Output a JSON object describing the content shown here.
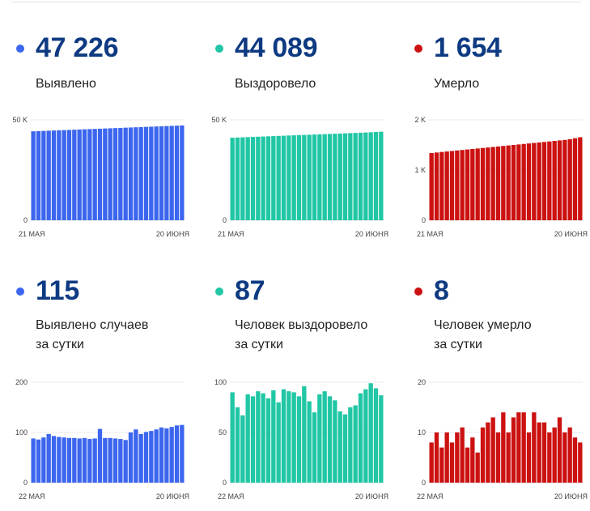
{
  "colors": {
    "blue": "#3c66ee",
    "green": "#21c7a5",
    "red": "#cc1111",
    "number": "#0e3a82"
  },
  "cards": [
    {
      "number": "47 226",
      "label_line1": "Выявлено",
      "label_line2": "",
      "color": "blue",
      "chart_data": {
        "type": "bar",
        "ylim": [
          0,
          50000
        ],
        "yticks": [
          "0",
          "50 K"
        ],
        "ytick_values": [
          0,
          50000
        ],
        "x_start_label": "21 МАЯ",
        "x_end_label": "20 ИЮНЯ",
        "values": [
          44300,
          44400,
          44500,
          44600,
          44700,
          44800,
          44900,
          45000,
          45100,
          45200,
          45300,
          45400,
          45500,
          45600,
          45700,
          45800,
          45900,
          46000,
          46100,
          46200,
          46300,
          46400,
          46500,
          46600,
          46700,
          46800,
          46900,
          47000,
          47100,
          47226
        ]
      }
    },
    {
      "number": "44 089",
      "label_line1": "Выздоровело",
      "label_line2": "",
      "color": "green",
      "chart_data": {
        "type": "bar",
        "ylim": [
          0,
          50000
        ],
        "yticks": [
          "0",
          "50 K"
        ],
        "ytick_values": [
          0,
          50000
        ],
        "x_start_label": "21 МАЯ",
        "x_end_label": "20 ИЮНЯ",
        "values": [
          41100,
          41200,
          41300,
          41400,
          41500,
          41600,
          41700,
          41800,
          41900,
          42000,
          42100,
          42200,
          42300,
          42400,
          42500,
          42600,
          42700,
          42800,
          42900,
          43000,
          43100,
          43200,
          43300,
          43400,
          43500,
          43600,
          43700,
          43800,
          43950,
          44089
        ]
      }
    },
    {
      "number": "1 654",
      "label_line1": "Умерло",
      "label_line2": "",
      "color": "red",
      "chart_data": {
        "type": "bar",
        "ylim": [
          0,
          2000
        ],
        "yticks": [
          "0",
          "1 K",
          "2 K"
        ],
        "ytick_values": [
          0,
          1000,
          2000
        ],
        "x_start_label": "21 МАЯ",
        "x_end_label": "20 ИЮНЯ",
        "values": [
          1340,
          1350,
          1360,
          1370,
          1380,
          1390,
          1400,
          1410,
          1420,
          1430,
          1440,
          1450,
          1460,
          1470,
          1480,
          1490,
          1500,
          1510,
          1520,
          1530,
          1540,
          1550,
          1560,
          1570,
          1580,
          1590,
          1600,
          1615,
          1635,
          1654
        ]
      }
    },
    {
      "number": "115",
      "label_line1": "Выявлено случаев",
      "label_line2": "за сутки",
      "color": "blue",
      "chart_data": {
        "type": "bar",
        "ylim": [
          0,
          200
        ],
        "yticks": [
          "0",
          "100",
          "200"
        ],
        "ytick_values": [
          0,
          100,
          200
        ],
        "x_start_label": "22 МАЯ",
        "x_end_label": "20 ИЮНЯ",
        "values": [
          88,
          86,
          90,
          97,
          93,
          91,
          90,
          89,
          89,
          88,
          89,
          87,
          88,
          107,
          89,
          89,
          88,
          87,
          85,
          100,
          106,
          97,
          101,
          103,
          106,
          110,
          108,
          111,
          114,
          115
        ]
      }
    },
    {
      "number": "87",
      "label_line1": "Человек выздоровело",
      "label_line2": "за сутки",
      "color": "green",
      "chart_data": {
        "type": "bar",
        "ylim": [
          0,
          100
        ],
        "yticks": [
          "0",
          "50",
          "100"
        ],
        "ytick_values": [
          0,
          50,
          100
        ],
        "x_start_label": "22 МАЯ",
        "x_end_label": "20 ИЮНЯ",
        "values": [
          90,
          75,
          67,
          88,
          86,
          91,
          89,
          84,
          92,
          80,
          93,
          91,
          90,
          86,
          96,
          81,
          70,
          88,
          91,
          86,
          82,
          71,
          68,
          75,
          77,
          89,
          93,
          99,
          94,
          87
        ]
      }
    },
    {
      "number": "8",
      "label_line1": "Человек умерло",
      "label_line2": "за сутки",
      "color": "red",
      "chart_data": {
        "type": "bar",
        "ylim": [
          0,
          20
        ],
        "yticks": [
          "0",
          "10",
          "20"
        ],
        "ytick_values": [
          0,
          10,
          20
        ],
        "x_start_label": "22 МАЯ",
        "x_end_label": "20 ИЮНЯ",
        "values": [
          8,
          10,
          7,
          10,
          8,
          10,
          11,
          7,
          9,
          6,
          11,
          12,
          13,
          10,
          14,
          10,
          13,
          14,
          14,
          10,
          14,
          12,
          12,
          10,
          11,
          13,
          10,
          11,
          9,
          8
        ]
      }
    }
  ]
}
